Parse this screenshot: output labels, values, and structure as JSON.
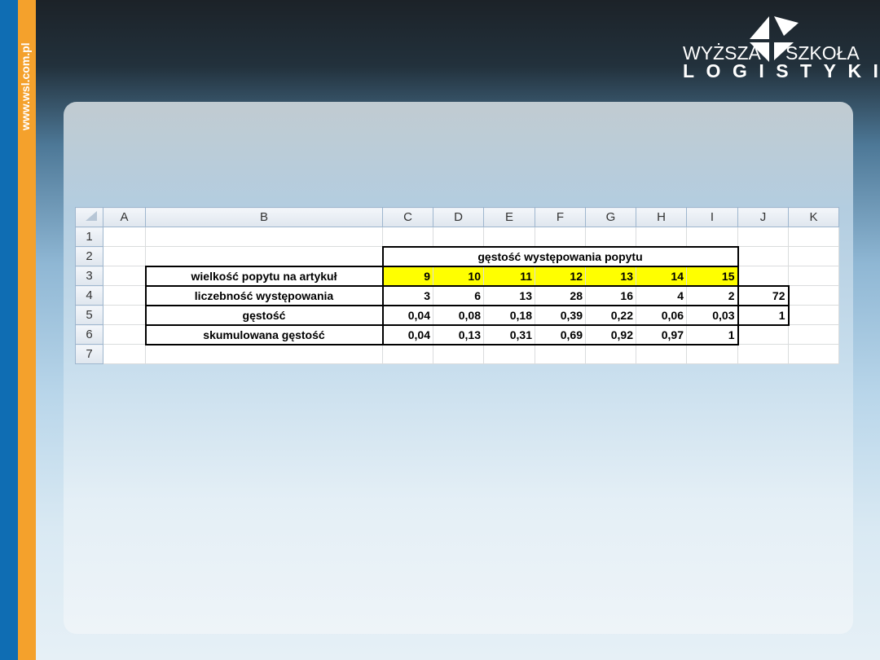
{
  "sidebar": {
    "url": "www.wsl.com.pl",
    "colors": {
      "blue": "#0f6db3",
      "orange": "#f4a12c"
    }
  },
  "logo": {
    "line1_left": "WYŻSZA",
    "line1_right": "SZKOŁA",
    "line2": "LOGISTYKI"
  },
  "sheet": {
    "columns": [
      "A",
      "B",
      "C",
      "D",
      "E",
      "F",
      "G",
      "H",
      "I",
      "J",
      "K"
    ],
    "rows": [
      "1",
      "2",
      "3",
      "4",
      "5",
      "6",
      "7"
    ],
    "title": "gęstość występowania popytu",
    "highlight_color": "#ffff00",
    "data": [
      {
        "label": "wielkość popytu na artykuł",
        "values": [
          "9",
          "10",
          "11",
          "12",
          "13",
          "14",
          "15"
        ],
        "total": ""
      },
      {
        "label": "liczebność występowania",
        "values": [
          "3",
          "6",
          "13",
          "28",
          "16",
          "4",
          "2"
        ],
        "total": "72"
      },
      {
        "label": "gęstość",
        "values": [
          "0,04",
          "0,08",
          "0,18",
          "0,39",
          "0,22",
          "0,06",
          "0,03"
        ],
        "total": "1"
      },
      {
        "label": "skumulowana gęstość",
        "values": [
          "0,04",
          "0,13",
          "0,31",
          "0,69",
          "0,92",
          "0,97",
          "1"
        ],
        "total": ""
      }
    ]
  }
}
